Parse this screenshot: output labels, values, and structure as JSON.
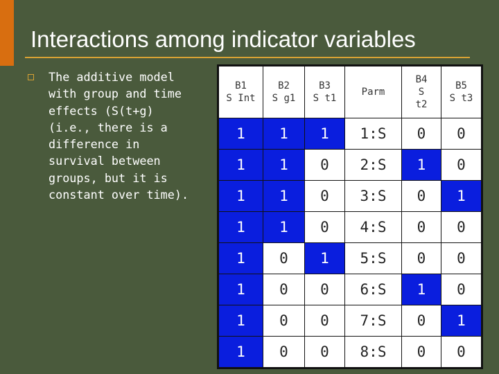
{
  "slide": {
    "title": "Interactions among indicator variables",
    "bullet_text": "The additive model with group and time effects (S(t+g) (i.e., there is a difference in survival between groups, but it is constant over time)."
  },
  "table": {
    "headers": [
      [
        "B1",
        "S Int"
      ],
      [
        "B2",
        "S g1"
      ],
      [
        "B3",
        "S t1"
      ],
      [
        "Parm"
      ],
      [
        "B4",
        "S",
        "t2"
      ],
      [
        "B5",
        "S t3"
      ]
    ],
    "rows": [
      [
        "1",
        "1",
        "1",
        "1:S",
        "0",
        "0"
      ],
      [
        "1",
        "1",
        "0",
        "2:S",
        "1",
        "0"
      ],
      [
        "1",
        "1",
        "0",
        "3:S",
        "0",
        "1"
      ],
      [
        "1",
        "1",
        "0",
        "4:S",
        "0",
        "0"
      ],
      [
        "1",
        "0",
        "1",
        "5:S",
        "0",
        "0"
      ],
      [
        "1",
        "0",
        "0",
        "6:S",
        "1",
        "0"
      ],
      [
        "1",
        "0",
        "0",
        "7:S",
        "0",
        "1"
      ],
      [
        "1",
        "0",
        "0",
        "8:S",
        "0",
        "0"
      ]
    ],
    "highlight": [
      [
        1,
        1,
        1,
        0,
        0,
        0
      ],
      [
        1,
        1,
        0,
        0,
        1,
        0
      ],
      [
        1,
        1,
        0,
        0,
        0,
        1
      ],
      [
        1,
        1,
        0,
        0,
        0,
        0
      ],
      [
        1,
        0,
        1,
        0,
        0,
        0
      ],
      [
        1,
        0,
        0,
        0,
        1,
        0
      ],
      [
        1,
        0,
        0,
        0,
        0,
        1
      ],
      [
        1,
        0,
        0,
        0,
        0,
        0
      ]
    ]
  },
  "colors": {
    "background": "#4a5a3c",
    "accent": "#d9a234",
    "corner_bar": "#d86e10",
    "highlight_cell": "#0a1ede"
  }
}
